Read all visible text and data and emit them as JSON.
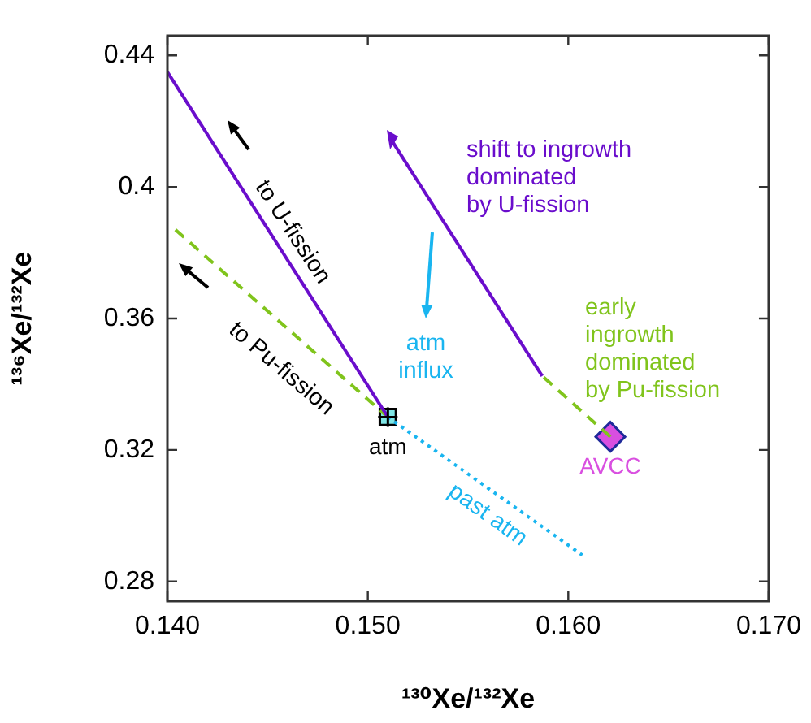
{
  "chart_data": {
    "type": "line",
    "xlabel": "¹³⁰Xe/¹³²Xe",
    "ylabel": "¹³⁶Xe/¹³²Xe",
    "xlim": [
      0.14,
      0.17
    ],
    "ylim": [
      0.274,
      0.446
    ],
    "xticks": [
      {
        "value": 0.14,
        "label": "0.140"
      },
      {
        "value": 0.15,
        "label": "0.150"
      },
      {
        "value": 0.16,
        "label": "0.160"
      },
      {
        "value": 0.17,
        "label": "0.170"
      }
    ],
    "yticks": [
      0.28,
      0.32,
      0.36,
      0.4,
      0.44
    ],
    "grid": false,
    "legend": false,
    "series": [
      {
        "type": "line",
        "line_style": "solid",
        "color": "#6a0dcc",
        "x": [
          0.14,
          0.151
        ],
        "values": [
          0.435,
          0.33
        ]
      },
      {
        "type": "line",
        "line_style": "dashed",
        "color": "#80c41c",
        "x": [
          0.1404,
          0.151
        ],
        "values": [
          0.387,
          0.33
        ]
      },
      {
        "type": "line",
        "line_style": "dotted",
        "color": "#19b5f0",
        "x": [
          0.151,
          0.1607
        ],
        "values": [
          0.33,
          0.288
        ]
      },
      {
        "type": "line",
        "line_style": "solid",
        "color": "#6a0dcc",
        "x": [
          0.1587,
          0.1511
        ],
        "values": [
          0.3425,
          0.415
        ]
      },
      {
        "type": "line",
        "line_style": "dashed",
        "color": "#80c41c",
        "x": [
          0.1621,
          0.1587
        ],
        "values": [
          0.324,
          0.3425
        ]
      },
      {
        "type": "scatter",
        "marker": "square",
        "name": "atm",
        "color": "#7fe6e6",
        "x": [
          0.151
        ],
        "values": [
          0.33
        ]
      },
      {
        "type": "scatter",
        "marker": "diamond",
        "name": "AVCC",
        "color": "#d94fe0",
        "x": [
          0.1621
        ],
        "values": [
          0.324
        ]
      }
    ],
    "annotations": [
      "to U-fission",
      "to Pu-fission",
      "past atm",
      "atm\ninflux",
      "shift to ingrowth\ndominated\nby U-fission",
      "early\ningrowth\ndominated\nby Pu-fission"
    ]
  }
}
